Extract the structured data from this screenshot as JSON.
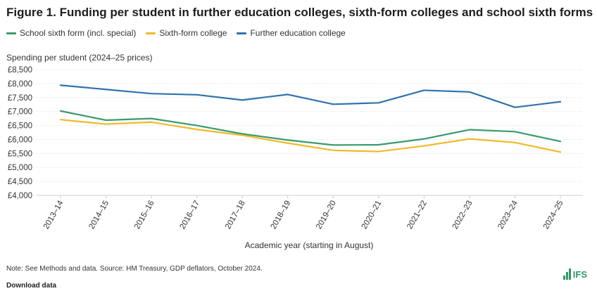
{
  "title": "Figure 1. Funding per student in further education colleges, sixth-form colleges and school sixth forms",
  "ylabel": "Spending per student (2024–25 prices)",
  "xlabel": "Academic year (starting in August)",
  "note": "Note: See Methods and data. Source: HM Treasury, GDP deflators, October 2024.",
  "download_label": "Download data",
  "logo_text": "IFS",
  "colors": {
    "school": "#3a9b6d",
    "sixth": "#f0b929",
    "fe": "#2f72ad",
    "grid": "#e8e8e8",
    "axis": "#cfcfcf"
  },
  "chart_data": {
    "type": "line",
    "x": [
      "2013–14",
      "2014–15",
      "2015–16",
      "2016–17",
      "2017–18",
      "2018–19",
      "2019–20",
      "2020–21",
      "2021–22",
      "2022–23",
      "2023–24",
      "2024–25"
    ],
    "ylim": [
      4000,
      8500
    ],
    "yticks": [
      4000,
      4500,
      5000,
      5500,
      6000,
      6500,
      7000,
      7500,
      8000,
      8500
    ],
    "ytick_labels": [
      "£4,000",
      "£4,500",
      "£5,000",
      "£5,500",
      "£6,000",
      "£6,500",
      "£7,000",
      "£7,500",
      "£8,000",
      "£8,500"
    ],
    "grid": true,
    "legend_position": "top-left",
    "series": [
      {
        "name": "School sixth form (incl. special)",
        "color_key": "school",
        "values": [
          7020,
          6690,
          6750,
          6500,
          6200,
          5980,
          5800,
          5810,
          6020,
          6350,
          6280,
          5930
        ]
      },
      {
        "name": "Sixth-form college",
        "color_key": "sixth",
        "values": [
          6710,
          6550,
          6620,
          6360,
          6150,
          5870,
          5610,
          5570,
          5770,
          6020,
          5890,
          5550
        ]
      },
      {
        "name": "Further education college",
        "color_key": "fe",
        "values": [
          7940,
          7790,
          7640,
          7600,
          7410,
          7610,
          7260,
          7310,
          7760,
          7700,
          7150,
          7350
        ]
      }
    ]
  }
}
